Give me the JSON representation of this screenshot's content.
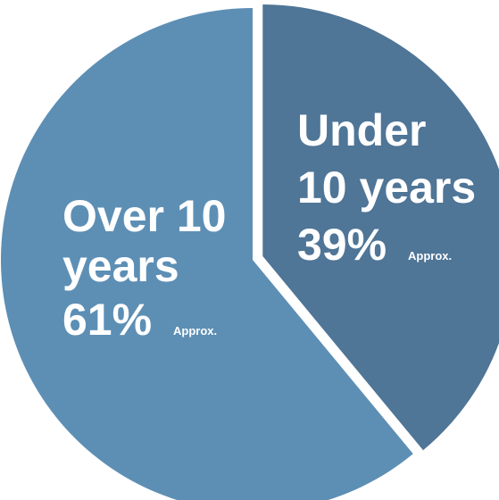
{
  "chart_data": {
    "type": "pie",
    "title": "",
    "slices": [
      {
        "label_lines": [
          "Under",
          "10 years"
        ],
        "value": 39,
        "value_text": "39%",
        "note": "Approx.",
        "color": "#4f7597"
      },
      {
        "label_lines": [
          "Over 10",
          "years"
        ],
        "value": 61,
        "value_text": "61%",
        "note": "Approx.",
        "color": "#5d8fb5"
      }
    ],
    "start_angle_deg": 0,
    "exploded_slice": "Under 10 years",
    "legend": "none"
  }
}
